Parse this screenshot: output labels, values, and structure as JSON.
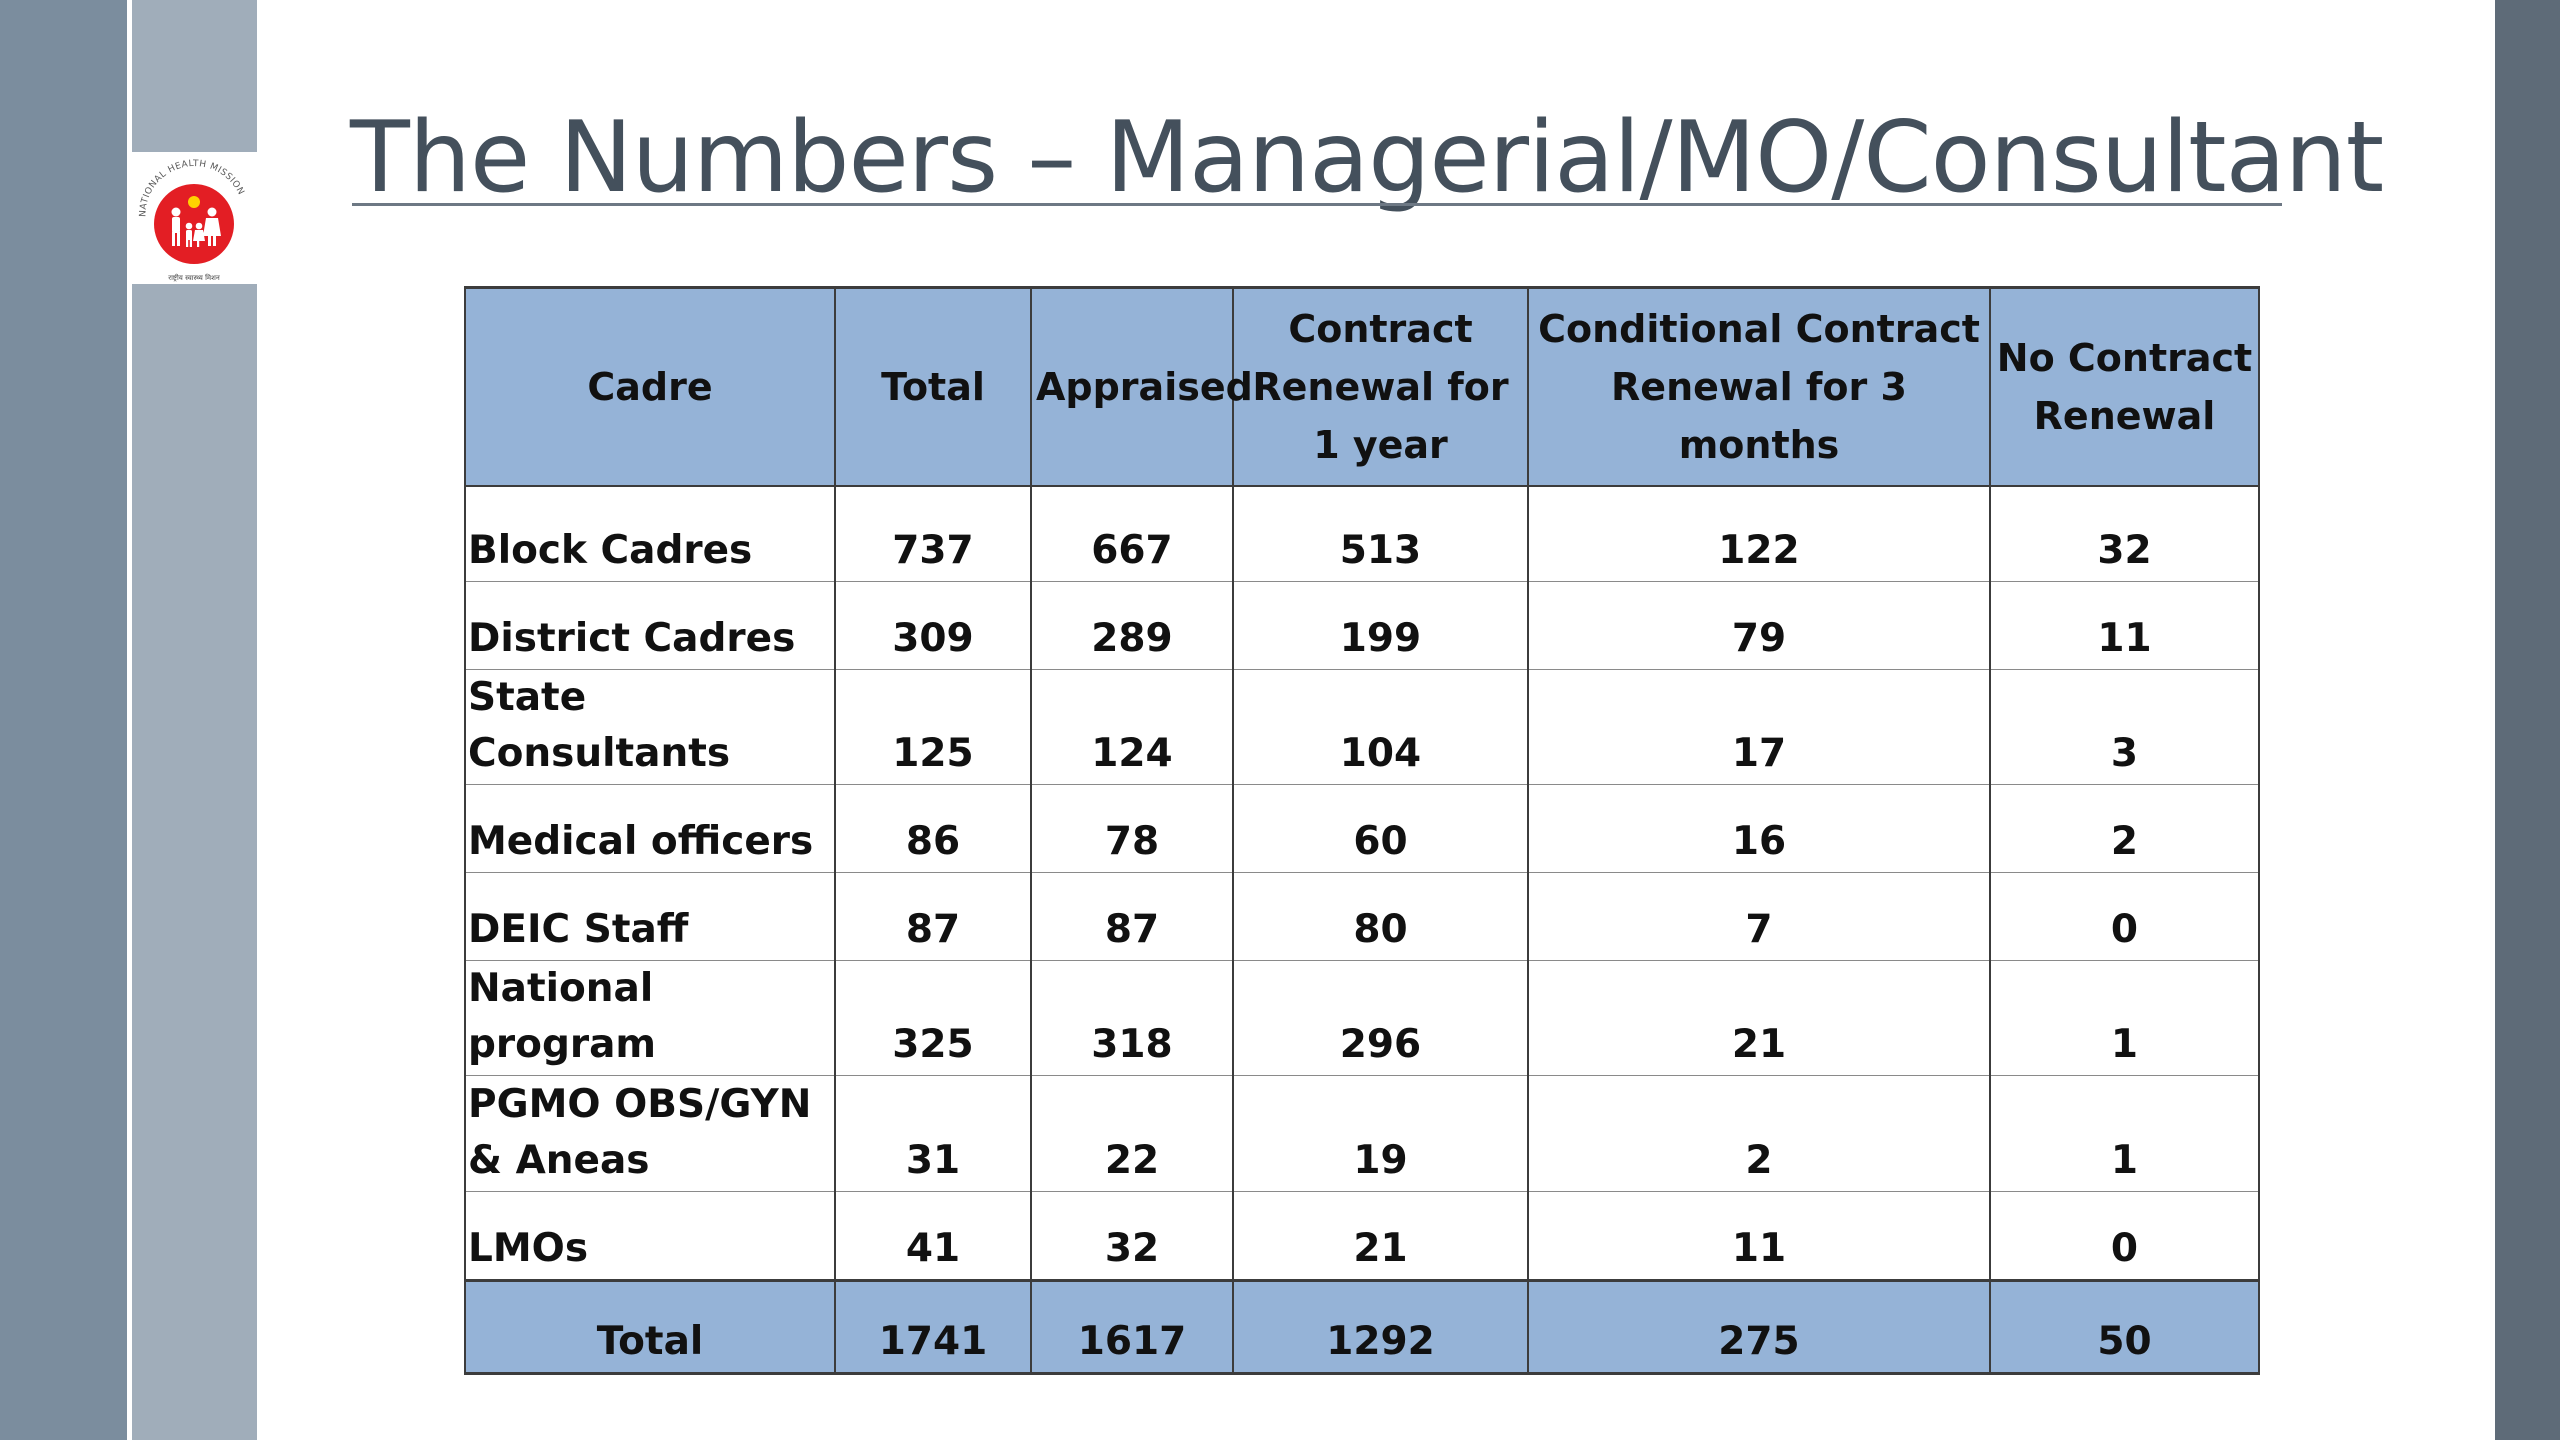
{
  "slide": {
    "title": "The Numbers –  Managerial/MO/Consultant",
    "logo": {
      "name": "national-health-mission-logo",
      "ring_text": "NATIONAL HEALTH MISSION",
      "bottom_text": "राष्ट्रीय स्वास्थ्य मिशन"
    }
  },
  "colors": {
    "header_fill": "#95b3d7",
    "title_text": "#44505c",
    "left_band_dark": "#7b8d9e",
    "left_band_light": "#a0adba",
    "right_band": "#5e6b78",
    "logo_red": "#e31e24"
  },
  "table": {
    "headers": [
      "Cadre",
      "Total",
      "Appraised",
      "Contract Renewal for 1 year",
      "Conditional Contract Renewal for 3 months",
      "No Contract Renewal"
    ],
    "rows": [
      [
        "Block Cadres",
        "737",
        "667",
        "513",
        "122",
        "32"
      ],
      [
        "District Cadres",
        "309",
        "289",
        "199",
        "79",
        "11"
      ],
      [
        "State Consultants",
        "125",
        "124",
        "104",
        "17",
        "3"
      ],
      [
        "Medical officers",
        "86",
        "78",
        "60",
        "16",
        "2"
      ],
      [
        "DEIC Staff",
        "87",
        "87",
        "80",
        "7",
        "0"
      ],
      [
        "National program",
        "325",
        "318",
        "296",
        "21",
        "1"
      ],
      [
        "PGMO OBS/GYN & Aneas",
        "31",
        "22",
        "19",
        "2",
        "1"
      ],
      [
        "LMOs",
        "41",
        "32",
        "21",
        "11",
        "0"
      ]
    ],
    "total_row": [
      "Total",
      "1741",
      "1617",
      "1292",
      "275",
      "50"
    ]
  }
}
